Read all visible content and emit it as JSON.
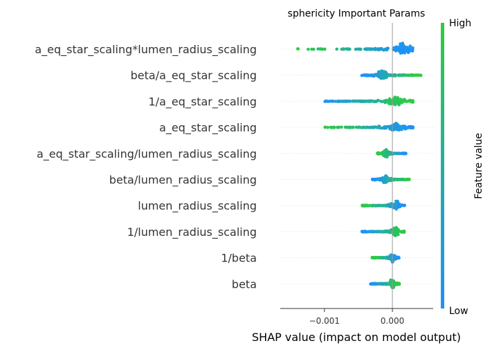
{
  "chart_data": {
    "type": "scatter",
    "subtype": "shap-beeswarm",
    "title": "sphericity Important Params",
    "xlabel": "SHAP value (impact on model output)",
    "xlim": [
      -0.00165,
      0.0006
    ],
    "xticks": [
      {
        "value": -0.001,
        "label": "−0.001"
      },
      {
        "value": 0.0,
        "label": "0.000"
      }
    ],
    "colorbar": {
      "label": "Feature value",
      "high_label": "High",
      "low_label": "Low",
      "high_color": "#2ecc40",
      "low_color": "#1e90ff"
    },
    "features": [
      {
        "name": "a_eq_star_scaling*lumen_radius_scaling",
        "min": -0.00142,
        "max": 0.0003,
        "core": [
          -0.0004,
          0.00028
        ],
        "dense": 0.00015,
        "low_side": "high"
      },
      {
        "name": "beta/a_eq_star_scaling",
        "min": -0.00045,
        "max": 0.00045,
        "core": [
          -0.0003,
          0.00032
        ],
        "dense": -0.00015,
        "low_side": "low"
      },
      {
        "name": "1/a_eq_star_scaling",
        "min": -0.0011,
        "max": 0.0003,
        "core": [
          -0.00055,
          0.0003
        ],
        "dense": 5e-05,
        "low_side": "low"
      },
      {
        "name": "a_eq_star_scaling",
        "min": -0.001,
        "max": 0.0003,
        "core": [
          -0.0004,
          0.0003
        ],
        "dense": 5e-05,
        "low_side": "high"
      },
      {
        "name": "a_eq_star_scaling/lumen_radius_scaling",
        "min": -0.00022,
        "max": 0.0002,
        "core": [
          -0.0002,
          0.00018
        ],
        "dense": -0.0001,
        "low_side": "high"
      },
      {
        "name": "beta/lumen_radius_scaling",
        "min": -0.0003,
        "max": 0.00025,
        "core": [
          -0.00025,
          0.0002
        ],
        "dense": -0.0001,
        "low_side": "low"
      },
      {
        "name": "lumen_radius_scaling",
        "min": -0.00045,
        "max": 0.00018,
        "core": [
          -0.0004,
          0.0001
        ],
        "dense": 5e-05,
        "low_side": "high"
      },
      {
        "name": "1/lumen_radius_scaling",
        "min": -0.00045,
        "max": 0.00018,
        "core": [
          -0.0004,
          0.0001
        ],
        "dense": 5e-05,
        "low_side": "low"
      },
      {
        "name": "1/beta",
        "min": -0.0003,
        "max": 0.0001,
        "core": [
          -0.00025,
          8e-05
        ],
        "dense": 0.0,
        "low_side": "high"
      },
      {
        "name": "beta",
        "min": -0.00032,
        "max": 0.0001,
        "core": [
          -0.00025,
          0.0001
        ],
        "dense": 0.0,
        "low_side": "low"
      }
    ]
  }
}
